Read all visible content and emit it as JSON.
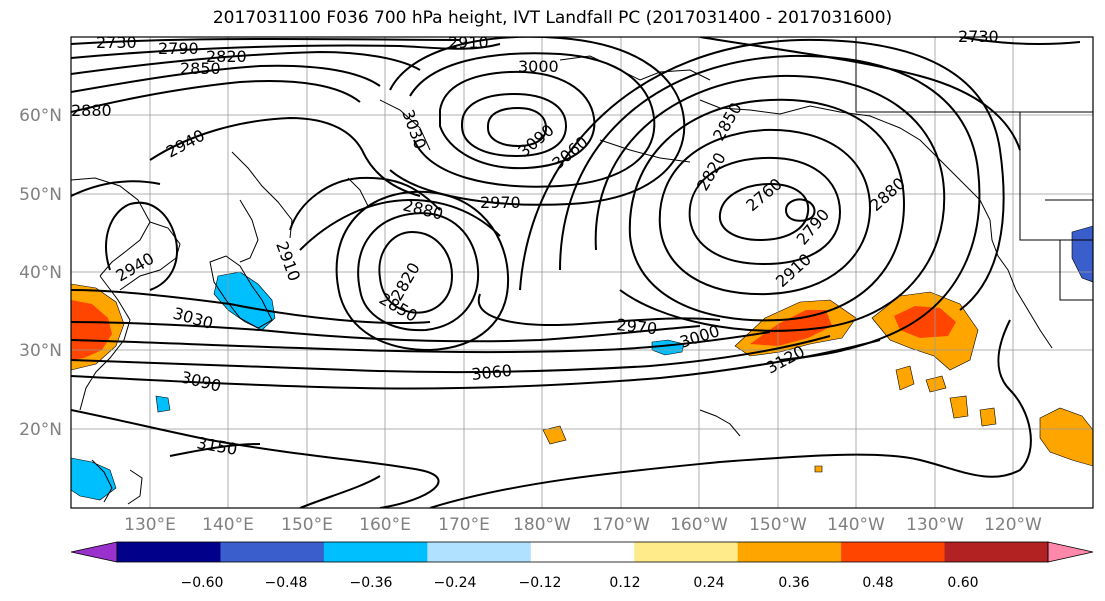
{
  "title": "2017031100 F036 700 hPa height, IVT Landfall PC (2017031400 - 2017031600)",
  "map": {
    "lat_ticks": [
      "60°N",
      "50°N",
      "40°N",
      "30°N",
      "20°N"
    ],
    "lon_ticks": [
      "130°E",
      "140°E",
      "150°E",
      "160°E",
      "170°E",
      "180°W",
      "170°W",
      "160°W",
      "150°W",
      "140°W",
      "130°W",
      "120°W"
    ]
  },
  "contour_labels": [
    "2730",
    "2760",
    "2790",
    "2820",
    "2850",
    "2880",
    "2910",
    "2940",
    "2970",
    "3000",
    "3030",
    "3060",
    "3090",
    "3120",
    "3150"
  ],
  "colorbar": {
    "tick_labels": [
      "−0.60",
      "−0.48",
      "−0.36",
      "−0.24",
      "−0.12",
      "0.12",
      "0.24",
      "0.36",
      "0.48",
      "0.60"
    ],
    "colors": [
      "#9932cc",
      "#00008b",
      "#3a5fcd",
      "#00bfff",
      "#b0e2ff",
      "#ffffff",
      "#ffeb8a",
      "#ffa500",
      "#ff4500",
      "#b22222",
      "#ff88aa"
    ]
  }
}
